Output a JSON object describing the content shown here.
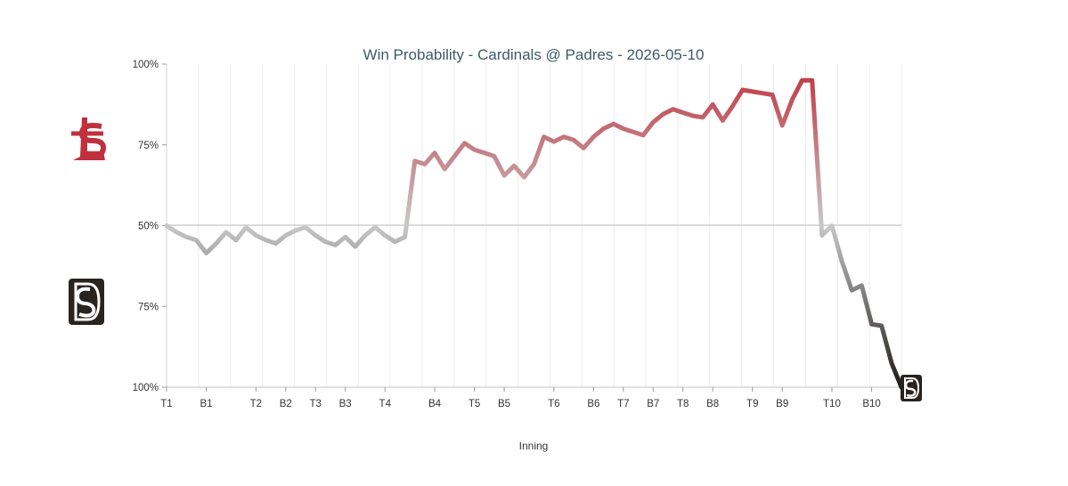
{
  "chart_data": {
    "type": "line",
    "title": "Win Probability - Cardinals @ Padres - 2026-05-10",
    "xlabel": "Inning",
    "ylabel": "",
    "ylim": [
      -100,
      100
    ],
    "y_tick_labels": [
      "100%",
      "75%",
      "50%",
      "75%",
      "100%"
    ],
    "x_tick_labels": [
      "T1",
      "B1",
      "T2",
      "B2",
      "T3",
      "B3",
      "T4",
      "B4",
      "T5",
      "B5",
      "T6",
      "B6",
      "T7",
      "B7",
      "T8",
      "B8",
      "T9",
      "B9",
      "T10",
      "B10"
    ],
    "x_tick_positions": [
      0,
      4,
      9,
      12,
      15,
      18,
      22,
      27,
      31,
      34,
      39,
      43,
      46,
      49,
      52,
      55,
      59,
      62,
      67,
      71
    ],
    "x_count": 73,
    "grid": true,
    "teams": [
      {
        "name": "Cardinals",
        "logo": "cardinals-stl-logo",
        "color": "#b5303a"
      },
      {
        "name": "Padres",
        "logo": "padres-sd-logo",
        "color": "#2a2420"
      }
    ],
    "series": [
      {
        "values": [
          0,
          -4,
          -7,
          -9,
          -17,
          -11,
          -4,
          -9,
          -1,
          -6,
          -9,
          -11,
          -6,
          -3,
          -1,
          -6,
          -10,
          -12,
          -7,
          -13,
          -6,
          -1,
          -6,
          -10,
          -7,
          40,
          38,
          45,
          35,
          43,
          51,
          47,
          45,
          43,
          31,
          37,
          30,
          38,
          55,
          52,
          55,
          53,
          48,
          55,
          60,
          63,
          60,
          58,
          56,
          64,
          69,
          72,
          70,
          68,
          67,
          75,
          65,
          74,
          84,
          83,
          82,
          81,
          62,
          78,
          90,
          90,
          -6,
          0,
          -22,
          -40,
          -37,
          -61,
          -62,
          -85,
          -100
        ]
      }
    ]
  }
}
